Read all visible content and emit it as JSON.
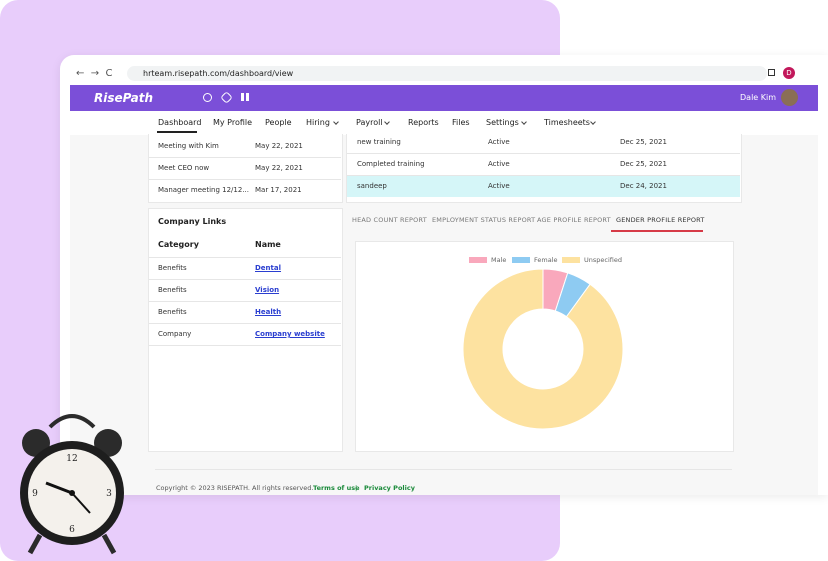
{
  "browser": {
    "url": "hrteam.risepath.com/dashboard/view",
    "avatar_letter": "D"
  },
  "header": {
    "logo": "RisePath",
    "user": "Dale Kim"
  },
  "nav": [
    "Dashboard",
    "My Profile",
    "People",
    "Hiring",
    "Payroll",
    "Reports",
    "Files",
    "Settings",
    "Timesheets"
  ],
  "meetings": [
    [
      "Meeting with Kim",
      "May 22, 2021"
    ],
    [
      "Meet CEO now",
      "May 22, 2021"
    ],
    [
      "Manager meeting 12/12...",
      "Mar 17, 2021"
    ]
  ],
  "trainings": [
    [
      "new training",
      "Active",
      "Dec 25, 2021"
    ],
    [
      "Completed training",
      "Active",
      "Dec 25, 2021"
    ],
    [
      "sandeep",
      "Active",
      "Dec 24, 2021"
    ]
  ],
  "company_links": {
    "title": "Company Links",
    "headers": [
      "Category",
      "Name"
    ],
    "rows": [
      [
        "Benefits",
        "Dental"
      ],
      [
        "Benefits",
        "Vision"
      ],
      [
        "Benefits",
        "Health"
      ],
      [
        "Company",
        "Company website"
      ]
    ]
  },
  "tabs": [
    "HEAD COUNT REPORT",
    "EMPLOYMENT STATUS REPORT",
    "AGE PROFILE REPORT",
    "GENDER PROFILE REPORT"
  ],
  "gender_chart": {
    "type": "pie",
    "categories": [
      "Male",
      "Female",
      "Unspecified"
    ],
    "values": [
      5,
      5,
      90
    ],
    "colors": [
      "#f9a8bc",
      "#8ecbf2",
      "#fde2a0"
    ]
  },
  "footer": {
    "copyright": "Copyright © 2023  RISEPATH.  All rights reserved.",
    "terms": "Terms of use",
    "separator": "|",
    "privacy": "Privacy Policy"
  }
}
